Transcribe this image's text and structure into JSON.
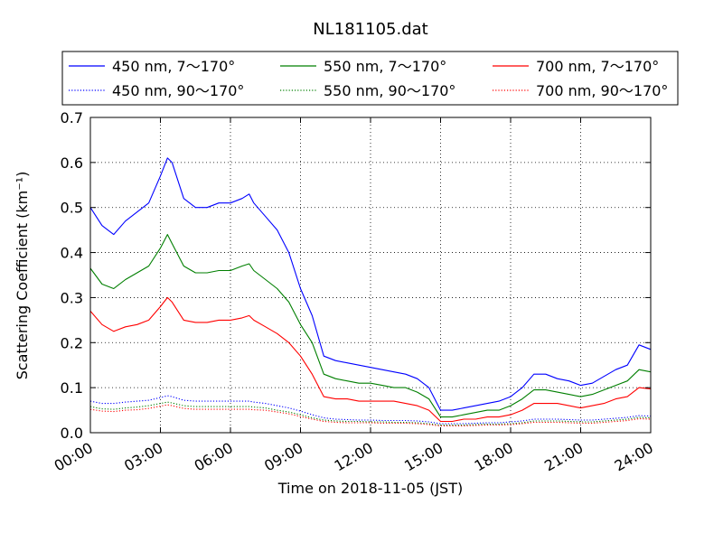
{
  "chart_data": {
    "type": "line",
    "title": "NL181105.dat",
    "xlabel": "Time on 2018-11-05 (JST)",
    "ylabel": "Scattering Coefficient (km⁻¹)",
    "x_unit": "hours",
    "xlim": [
      0,
      24
    ],
    "ylim": [
      0,
      0.7
    ],
    "x_ticks": [
      0,
      3,
      6,
      9,
      12,
      15,
      18,
      21,
      24
    ],
    "x_tick_labels": [
      "00:00",
      "03:00",
      "06:00",
      "09:00",
      "12:00",
      "15:00",
      "18:00",
      "21:00",
      "24:00"
    ],
    "y_ticks": [
      0.0,
      0.1,
      0.2,
      0.3,
      0.4,
      0.5,
      0.6,
      0.7
    ],
    "y_tick_labels": [
      "0.0",
      "0.1",
      "0.2",
      "0.3",
      "0.4",
      "0.5",
      "0.6",
      "0.7"
    ],
    "grid": true,
    "legend_position": "top",
    "x": [
      0,
      0.5,
      1,
      1.5,
      2,
      2.5,
      3,
      3.3,
      3.5,
      4,
      4.5,
      5,
      5.5,
      6,
      6.5,
      6.8,
      7,
      7.5,
      8,
      8.5,
      9,
      9.5,
      10,
      10.5,
      11,
      11.5,
      12,
      12.5,
      13,
      13.5,
      14,
      14.5,
      15,
      15.5,
      16,
      16.5,
      17,
      17.5,
      18,
      18.5,
      19,
      19.5,
      20,
      20.5,
      21,
      21.5,
      22,
      22.5,
      23,
      23.5,
      24
    ],
    "series": [
      {
        "name": "450 nm, 7～170°",
        "color": "#0000ff",
        "style": "solid",
        "values": [
          0.5,
          0.46,
          0.44,
          0.47,
          0.49,
          0.51,
          0.57,
          0.61,
          0.6,
          0.52,
          0.5,
          0.5,
          0.51,
          0.51,
          0.52,
          0.53,
          0.51,
          0.48,
          0.45,
          0.4,
          0.32,
          0.26,
          0.17,
          0.16,
          0.155,
          0.15,
          0.145,
          0.14,
          0.135,
          0.13,
          0.12,
          0.1,
          0.05,
          0.05,
          0.055,
          0.06,
          0.065,
          0.07,
          0.08,
          0.1,
          0.13,
          0.13,
          0.12,
          0.115,
          0.105,
          0.11,
          0.125,
          0.14,
          0.15,
          0.195,
          0.185
        ]
      },
      {
        "name": "550 nm, 7～170°",
        "color": "#007f00",
        "style": "solid",
        "values": [
          0.365,
          0.33,
          0.32,
          0.34,
          0.355,
          0.37,
          0.41,
          0.44,
          0.42,
          0.37,
          0.355,
          0.355,
          0.36,
          0.36,
          0.37,
          0.375,
          0.36,
          0.34,
          0.32,
          0.29,
          0.24,
          0.2,
          0.13,
          0.12,
          0.115,
          0.11,
          0.11,
          0.105,
          0.1,
          0.1,
          0.09,
          0.075,
          0.035,
          0.035,
          0.04,
          0.045,
          0.05,
          0.05,
          0.06,
          0.075,
          0.095,
          0.095,
          0.09,
          0.085,
          0.08,
          0.085,
          0.095,
          0.105,
          0.115,
          0.14,
          0.135
        ]
      },
      {
        "name": "700 nm, 7～170°",
        "color": "#ff0000",
        "style": "solid",
        "values": [
          0.27,
          0.24,
          0.225,
          0.235,
          0.24,
          0.25,
          0.28,
          0.3,
          0.29,
          0.25,
          0.245,
          0.245,
          0.25,
          0.25,
          0.255,
          0.26,
          0.25,
          0.235,
          0.22,
          0.2,
          0.17,
          0.13,
          0.08,
          0.075,
          0.075,
          0.07,
          0.07,
          0.07,
          0.07,
          0.065,
          0.06,
          0.05,
          0.025,
          0.025,
          0.03,
          0.03,
          0.035,
          0.035,
          0.04,
          0.05,
          0.065,
          0.065,
          0.065,
          0.06,
          0.055,
          0.06,
          0.065,
          0.075,
          0.08,
          0.1,
          0.097
        ]
      },
      {
        "name": "450 nm, 90～170°",
        "color": "#0000ff",
        "style": "dotted",
        "values": [
          0.07,
          0.065,
          0.065,
          0.068,
          0.07,
          0.072,
          0.078,
          0.082,
          0.08,
          0.072,
          0.07,
          0.07,
          0.07,
          0.07,
          0.07,
          0.07,
          0.068,
          0.065,
          0.06,
          0.055,
          0.048,
          0.04,
          0.033,
          0.03,
          0.029,
          0.028,
          0.028,
          0.027,
          0.027,
          0.027,
          0.026,
          0.024,
          0.02,
          0.02,
          0.02,
          0.021,
          0.022,
          0.022,
          0.024,
          0.026,
          0.03,
          0.03,
          0.03,
          0.029,
          0.028,
          0.028,
          0.03,
          0.032,
          0.034,
          0.038,
          0.037
        ]
      },
      {
        "name": "550 nm, 90～170°",
        "color": "#007f00",
        "style": "dotted",
        "values": [
          0.058,
          0.053,
          0.052,
          0.055,
          0.057,
          0.06,
          0.065,
          0.068,
          0.066,
          0.06,
          0.058,
          0.058,
          0.058,
          0.058,
          0.058,
          0.058,
          0.057,
          0.055,
          0.05,
          0.046,
          0.04,
          0.033,
          0.028,
          0.026,
          0.025,
          0.025,
          0.024,
          0.024,
          0.023,
          0.023,
          0.022,
          0.02,
          0.017,
          0.017,
          0.017,
          0.018,
          0.019,
          0.019,
          0.02,
          0.022,
          0.026,
          0.026,
          0.026,
          0.025,
          0.024,
          0.024,
          0.026,
          0.028,
          0.03,
          0.034,
          0.033
        ]
      },
      {
        "name": "700 nm, 90～170°",
        "color": "#ff0000",
        "style": "dotted",
        "values": [
          0.052,
          0.048,
          0.047,
          0.05,
          0.051,
          0.054,
          0.059,
          0.062,
          0.06,
          0.054,
          0.052,
          0.052,
          0.052,
          0.052,
          0.052,
          0.052,
          0.051,
          0.05,
          0.046,
          0.042,
          0.036,
          0.03,
          0.025,
          0.023,
          0.022,
          0.022,
          0.022,
          0.021,
          0.021,
          0.021,
          0.02,
          0.018,
          0.015,
          0.015,
          0.015,
          0.016,
          0.017,
          0.017,
          0.018,
          0.02,
          0.023,
          0.023,
          0.023,
          0.022,
          0.021,
          0.021,
          0.023,
          0.025,
          0.027,
          0.031,
          0.03
        ]
      }
    ]
  }
}
